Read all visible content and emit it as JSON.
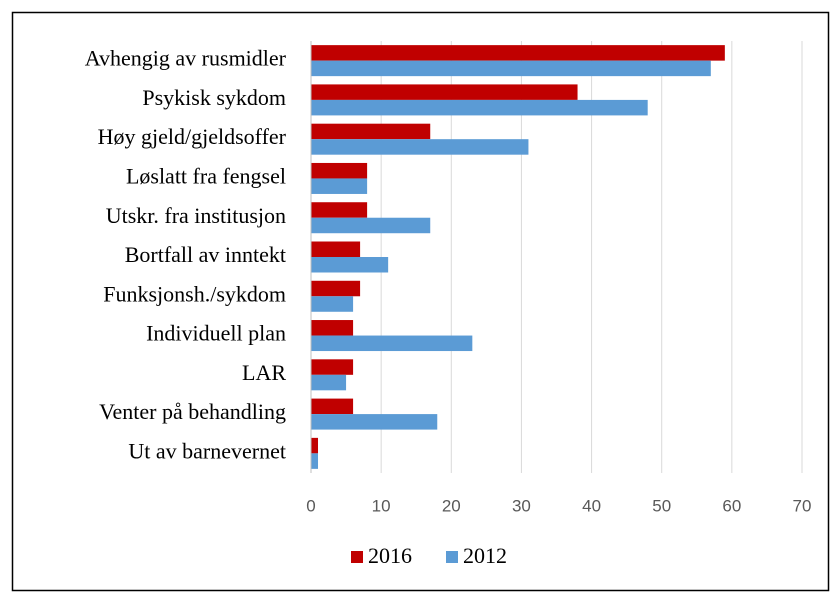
{
  "chart_data": {
    "type": "bar",
    "horizontal": true,
    "categories": [
      "Avhengig av rusmidler",
      "Psykisk sykdom",
      "Høy gjeld/gjeldsoffer",
      "Løslatt fra fengsel",
      "Utskr. fra institusjon",
      "Bortfall av inntekt",
      "Funksjonsh./sykdom",
      "Individuell plan",
      "LAR",
      "Venter på behandling",
      "Ut av barnevernet"
    ],
    "series": [
      {
        "name": "2016",
        "color": "#c00000",
        "values": [
          59,
          38,
          17,
          8,
          8,
          7,
          7,
          6,
          6,
          6,
          1
        ]
      },
      {
        "name": "2012",
        "color": "#5b9bd5",
        "values": [
          57,
          48,
          31,
          8,
          17,
          11,
          6,
          23,
          5,
          18,
          1
        ]
      }
    ],
    "xlim": [
      0,
      70
    ],
    "xticks": [
      0,
      10,
      20,
      30,
      40,
      50,
      60,
      70
    ],
    "grid": true,
    "legend": "bottom"
  }
}
